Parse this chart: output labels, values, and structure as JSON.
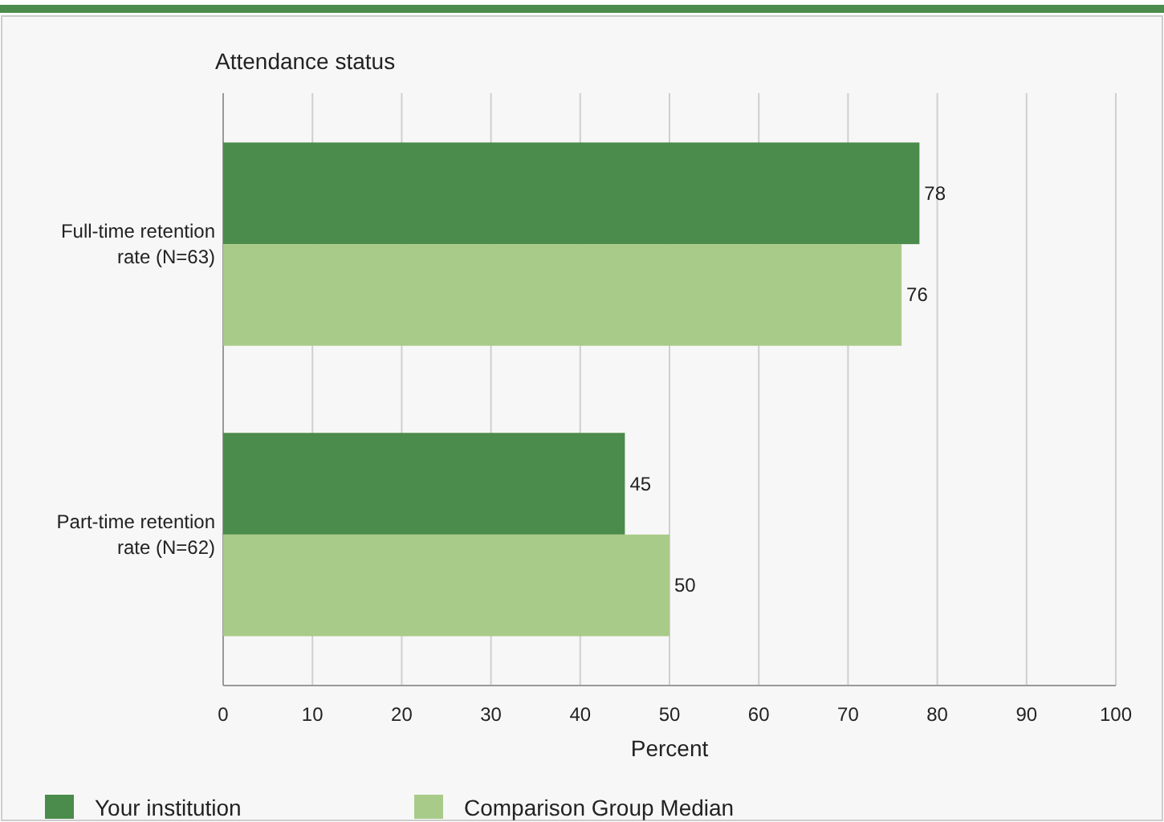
{
  "chart_data": {
    "type": "bar",
    "orientation": "horizontal",
    "ylabel": "Attendance status",
    "xlabel": "Percent",
    "categories": [
      "Full-time retention rate (N=63)",
      "Part-time retention rate (N=62)"
    ],
    "series": [
      {
        "name": "Your institution",
        "color": "#4b8b4b",
        "values": [
          78,
          45
        ]
      },
      {
        "name": "Comparison Group Median",
        "color": "#a9cb89",
        "values": [
          76,
          50
        ]
      }
    ],
    "xlim": [
      0,
      100
    ],
    "xticks": [
      0,
      10,
      20,
      30,
      40,
      50,
      60,
      70,
      80,
      90,
      100
    ],
    "grid": "x",
    "legend": "bottom",
    "data_labels": true
  }
}
